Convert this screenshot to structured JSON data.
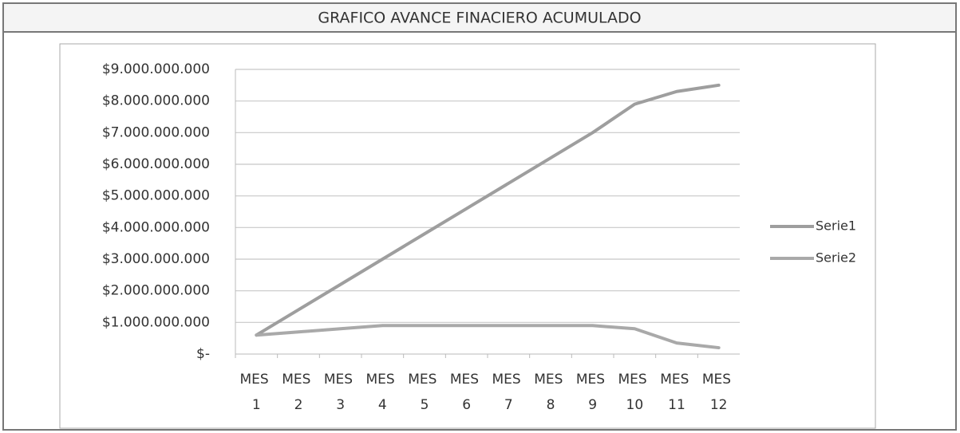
{
  "chart_data": {
    "type": "line",
    "title": "GRAFICO AVANCE FINACIERO ACUMULADO",
    "categories": [
      "MES 1",
      "MES 2",
      "MES 3",
      "MES 4",
      "MES 5",
      "MES 6",
      "MES 7",
      "MES 8",
      "MES 9",
      "MES 10",
      "MES 11",
      "MES 12"
    ],
    "series": [
      {
        "name": "Serie1",
        "color": "#9e9e9e",
        "values": [
          600000000,
          1400000000,
          2200000000,
          3000000000,
          3800000000,
          4600000000,
          5400000000,
          6200000000,
          7000000000,
          7900000000,
          8300000000,
          8500000000
        ]
      },
      {
        "name": "Serie2",
        "color": "#a9a9a9",
        "values": [
          600000000,
          700000000,
          800000000,
          900000000,
          900000000,
          900000000,
          900000000,
          900000000,
          900000000,
          800000000,
          350000000,
          200000000
        ]
      }
    ],
    "ylim": [
      0,
      9000000000
    ],
    "yticks": [
      {
        "value": 0,
        "label": "$-"
      },
      {
        "value": 1000000000,
        "label": "$1.000.000.000"
      },
      {
        "value": 2000000000,
        "label": "$2.000.000.000"
      },
      {
        "value": 3000000000,
        "label": "$3.000.000.000"
      },
      {
        "value": 4000000000,
        "label": "$4.000.000.000"
      },
      {
        "value": 5000000000,
        "label": "$5.000.000.000"
      },
      {
        "value": 6000000000,
        "label": "$6.000.000.000"
      },
      {
        "value": 7000000000,
        "label": "$7.000.000.000"
      },
      {
        "value": 8000000000,
        "label": "$8.000.000.000"
      },
      {
        "value": 9000000000,
        "label": "$9.000.000.000"
      }
    ],
    "grid": true,
    "legend": "right"
  }
}
